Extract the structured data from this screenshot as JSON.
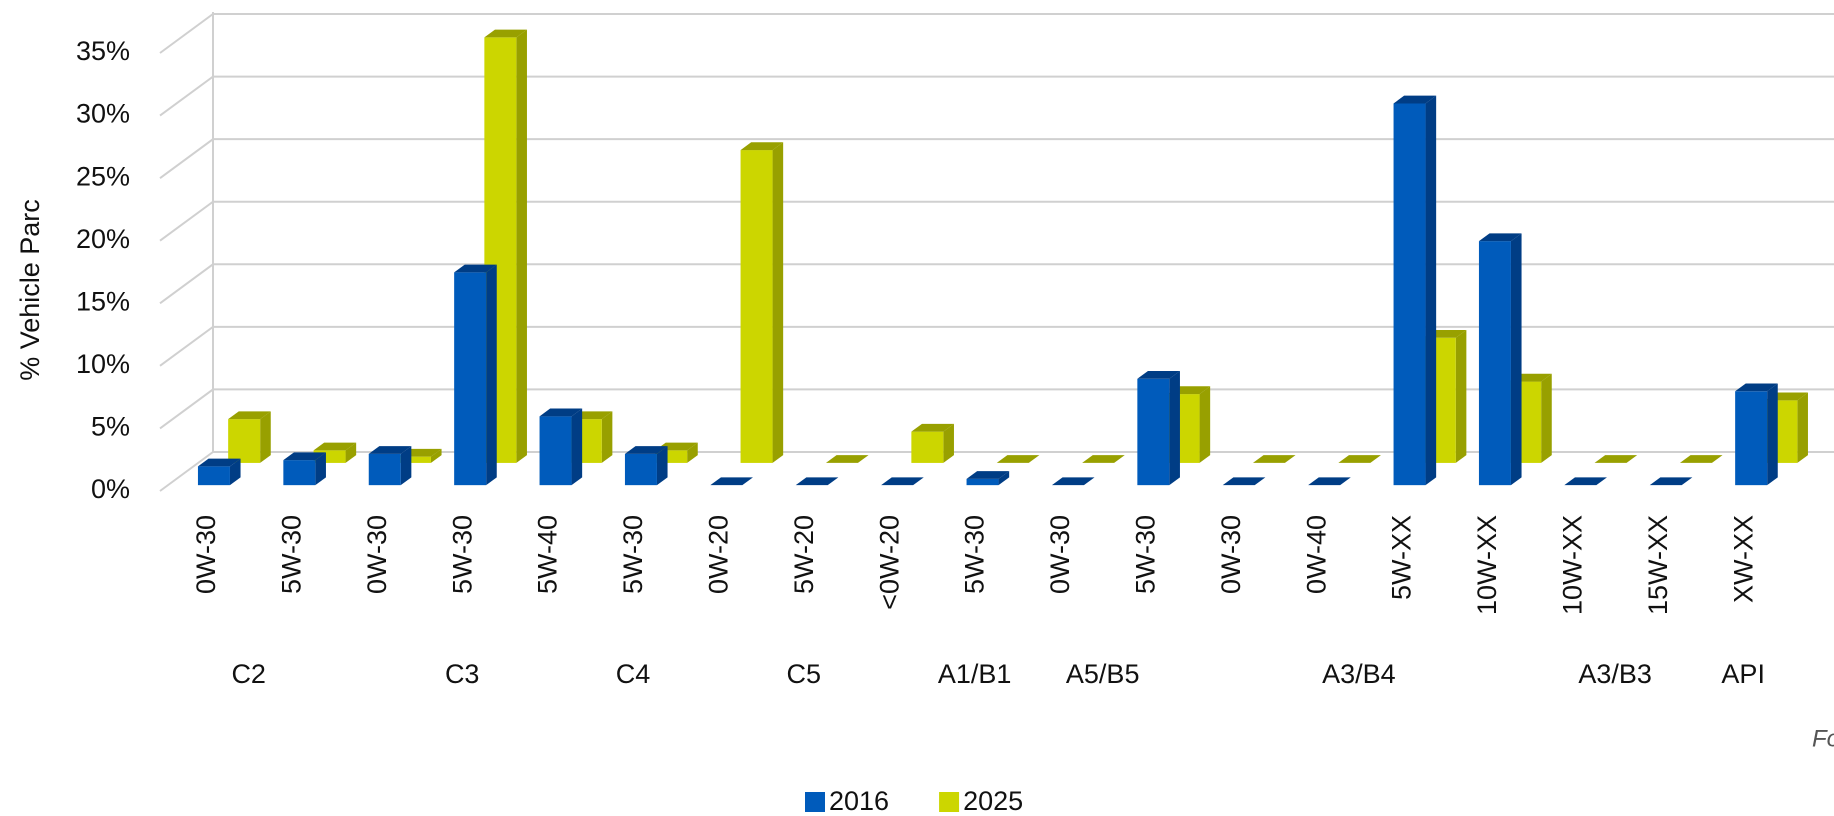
{
  "chart_data": {
    "type": "bar3d",
    "y_label": "% Vehicle Parc",
    "annotation": "Fo",
    "groups": [
      {
        "name": "C2",
        "categories": [
          "0W-30",
          "5W-30"
        ]
      },
      {
        "name": "C3",
        "categories": [
          "0W-30",
          "5W-30",
          "5W-40"
        ]
      },
      {
        "name": "C4",
        "categories": [
          "5W-30"
        ]
      },
      {
        "name": "C5",
        "categories": [
          "0W-20",
          "5W-20",
          "<0W-20"
        ]
      },
      {
        "name": "A1/B1",
        "categories": [
          "5W-30"
        ]
      },
      {
        "name": "A5/B5",
        "categories": [
          "0W-30",
          "5W-30"
        ]
      },
      {
        "name": "A3/B4",
        "categories": [
          "0W-30",
          "0W-40",
          "5W-XX",
          "10W-XX"
        ]
      },
      {
        "name": "A3/B3",
        "categories": [
          "10W-XX",
          "15W-XX"
        ]
      },
      {
        "name": "API",
        "categories": [
          "XW-XX"
        ]
      }
    ],
    "series": [
      {
        "name": "2016",
        "color": "#005bbb",
        "side_color": "#003d85",
        "values": [
          1.5,
          2,
          2.5,
          17,
          5.5,
          2.5,
          0,
          0,
          0,
          0.5,
          0,
          8.5,
          0,
          0,
          30.5,
          19.5,
          0,
          0,
          7.5
        ]
      },
      {
        "name": "2025",
        "color": "#ccd600",
        "side_color": "#98a000",
        "values": [
          3.5,
          1,
          0.5,
          34,
          3.5,
          1,
          25,
          0,
          2.5,
          0,
          0,
          5.5,
          0,
          0,
          10,
          6.5,
          0,
          0,
          5
        ]
      }
    ],
    "ylim": [
      0,
      35
    ],
    "yticks": [
      {
        "value": 0,
        "label": "0%"
      },
      {
        "value": 5,
        "label": "5%"
      },
      {
        "value": 10,
        "label": "10%"
      },
      {
        "value": 15,
        "label": "15%"
      },
      {
        "value": 20,
        "label": "20%"
      },
      {
        "value": 25,
        "label": "25%"
      },
      {
        "value": 30,
        "label": "30%"
      },
      {
        "value": 35,
        "label": "35%"
      }
    ],
    "grid": true
  }
}
